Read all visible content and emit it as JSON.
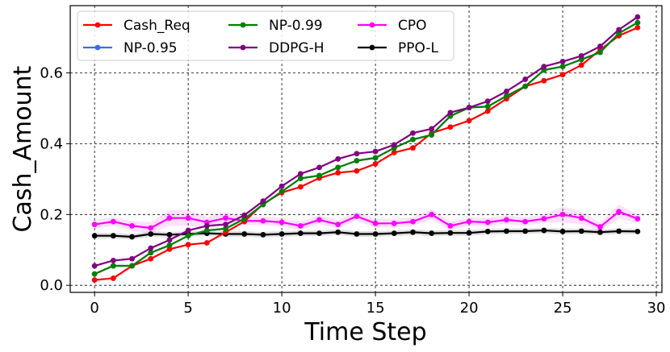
{
  "chart_data": {
    "type": "line",
    "title": "",
    "xlabel": "Time Step",
    "ylabel": "Cash_Amount",
    "xlim": [
      -1.3,
      30.3
    ],
    "ylim": [
      -0.02,
      0.79
    ],
    "xticks": [
      0,
      5,
      10,
      15,
      20,
      25,
      30
    ],
    "yticks": [
      0.0,
      0.2,
      0.4,
      0.6
    ],
    "ytick_labels": [
      "0.0",
      "0.2",
      "0.4",
      "0.6"
    ],
    "grid": true,
    "legend_position": "top-left",
    "x": [
      0,
      1,
      2,
      3,
      4,
      5,
      6,
      7,
      8,
      9,
      10,
      11,
      12,
      13,
      14,
      15,
      16,
      17,
      18,
      19,
      20,
      21,
      22,
      23,
      24,
      25,
      26,
      27,
      28,
      29
    ],
    "series": [
      {
        "name": "Cash_Req",
        "color": "#ff0000",
        "values": [
          0.015,
          0.02,
          0.055,
          0.075,
          0.102,
          0.115,
          0.12,
          0.15,
          0.18,
          0.23,
          0.262,
          0.278,
          0.303,
          0.318,
          0.323,
          0.343,
          0.375,
          0.388,
          0.43,
          0.447,
          0.465,
          0.492,
          0.527,
          0.562,
          0.578,
          0.595,
          0.622,
          0.665,
          0.705,
          0.728
        ],
        "band": [
          0.0,
          0.0,
          0.0,
          0.0,
          0.0,
          0.0,
          0.0,
          0.0,
          0.0,
          0.0,
          0.0,
          0.0,
          0.0,
          0.0,
          0.0,
          0.0,
          0.0,
          0.0,
          0.0,
          0.0,
          0.0,
          0.0,
          0.0,
          0.0,
          0.0,
          0.0,
          0.0,
          0.0,
          0.0,
          0.0
        ]
      },
      {
        "name": "NP-0.95",
        "color": "#3c6fd9",
        "values": [
          0.032,
          0.055,
          0.055,
          0.092,
          0.113,
          0.14,
          0.155,
          0.16,
          0.188,
          0.228,
          0.265,
          0.302,
          0.31,
          0.333,
          0.352,
          0.36,
          0.388,
          0.412,
          0.425,
          0.478,
          0.502,
          0.505,
          0.535,
          0.562,
          0.608,
          0.618,
          0.638,
          0.658,
          0.712,
          0.742
        ],
        "band": [
          0.0,
          0.0,
          0.0,
          0.0,
          0.0,
          0.0,
          0.0,
          0.0,
          0.0,
          0.0,
          0.0,
          0.0,
          0.0,
          0.0,
          0.0,
          0.0,
          0.0,
          0.0,
          0.0,
          0.0,
          0.0,
          0.0,
          0.0,
          0.0,
          0.0,
          0.0,
          0.0,
          0.0,
          0.0,
          0.0
        ]
      },
      {
        "name": "NP-0.99",
        "color": "#008000",
        "values": [
          0.032,
          0.055,
          0.055,
          0.092,
          0.113,
          0.14,
          0.155,
          0.16,
          0.188,
          0.228,
          0.265,
          0.302,
          0.31,
          0.333,
          0.352,
          0.36,
          0.388,
          0.412,
          0.425,
          0.478,
          0.502,
          0.505,
          0.535,
          0.562,
          0.608,
          0.618,
          0.638,
          0.658,
          0.712,
          0.742
        ],
        "band": [
          0.0,
          0.0,
          0.0,
          0.0,
          0.0,
          0.0,
          0.0,
          0.0,
          0.0,
          0.0,
          0.0,
          0.0,
          0.0,
          0.0,
          0.0,
          0.0,
          0.0,
          0.0,
          0.0,
          0.0,
          0.0,
          0.0,
          0.0,
          0.0,
          0.0,
          0.0,
          0.0,
          0.0,
          0.0,
          0.0
        ]
      },
      {
        "name": "DDPG-H",
        "color": "#800080",
        "values": [
          0.055,
          0.07,
          0.075,
          0.105,
          0.128,
          0.155,
          0.168,
          0.172,
          0.198,
          0.238,
          0.28,
          0.315,
          0.333,
          0.357,
          0.372,
          0.378,
          0.397,
          0.43,
          0.442,
          0.488,
          0.502,
          0.52,
          0.548,
          0.582,
          0.618,
          0.632,
          0.648,
          0.675,
          0.722,
          0.758
        ],
        "band": [
          0.0,
          0.0,
          0.0,
          0.0,
          0.0,
          0.0,
          0.0,
          0.0,
          0.0,
          0.0,
          0.0,
          0.0,
          0.0,
          0.0,
          0.0,
          0.0,
          0.0,
          0.0,
          0.0,
          0.0,
          0.0,
          0.0,
          0.0,
          0.0,
          0.0,
          0.0,
          0.0,
          0.0,
          0.0,
          0.0
        ]
      },
      {
        "name": "CPO",
        "color": "#ff00ff",
        "values": [
          0.172,
          0.18,
          0.168,
          0.162,
          0.19,
          0.19,
          0.178,
          0.19,
          0.182,
          0.182,
          0.178,
          0.168,
          0.185,
          0.172,
          0.195,
          0.175,
          0.175,
          0.18,
          0.2,
          0.168,
          0.18,
          0.178,
          0.185,
          0.18,
          0.188,
          0.2,
          0.19,
          0.165,
          0.208,
          0.188
        ],
        "band": [
          0.012,
          0.012,
          0.014,
          0.016,
          0.022,
          0.022,
          0.015,
          0.018,
          0.012,
          0.012,
          0.012,
          0.012,
          0.012,
          0.012,
          0.012,
          0.012,
          0.012,
          0.012,
          0.015,
          0.012,
          0.012,
          0.012,
          0.012,
          0.012,
          0.012,
          0.022,
          0.018,
          0.012,
          0.02,
          0.012
        ]
      },
      {
        "name": "PPO-L",
        "color": "#000000",
        "values": [
          0.14,
          0.14,
          0.137,
          0.145,
          0.143,
          0.145,
          0.147,
          0.145,
          0.145,
          0.143,
          0.145,
          0.147,
          0.147,
          0.15,
          0.145,
          0.145,
          0.147,
          0.15,
          0.147,
          0.148,
          0.148,
          0.152,
          0.153,
          0.153,
          0.155,
          0.152,
          0.153,
          0.15,
          0.153,
          0.152
        ],
        "band": [
          0.008,
          0.008,
          0.008,
          0.008,
          0.008,
          0.008,
          0.008,
          0.008,
          0.008,
          0.008,
          0.008,
          0.008,
          0.008,
          0.008,
          0.008,
          0.008,
          0.008,
          0.008,
          0.008,
          0.008,
          0.008,
          0.008,
          0.008,
          0.008,
          0.008,
          0.008,
          0.008,
          0.008,
          0.008,
          0.008
        ]
      }
    ],
    "legend": [
      {
        "name": "Cash_Req",
        "color": "#ff0000"
      },
      {
        "name": "NP-0.95",
        "color": "#3c6fd9"
      },
      {
        "name": "NP-0.99",
        "color": "#008000"
      },
      {
        "name": "DDPG-H",
        "color": "#800080"
      },
      {
        "name": "CPO",
        "color": "#ff00ff"
      },
      {
        "name": "PPO-L",
        "color": "#000000"
      }
    ],
    "draw_order": [
      "PPO-L",
      "CPO",
      "Cash_Req",
      "NP-0.95",
      "NP-0.99",
      "DDPG-H"
    ]
  }
}
